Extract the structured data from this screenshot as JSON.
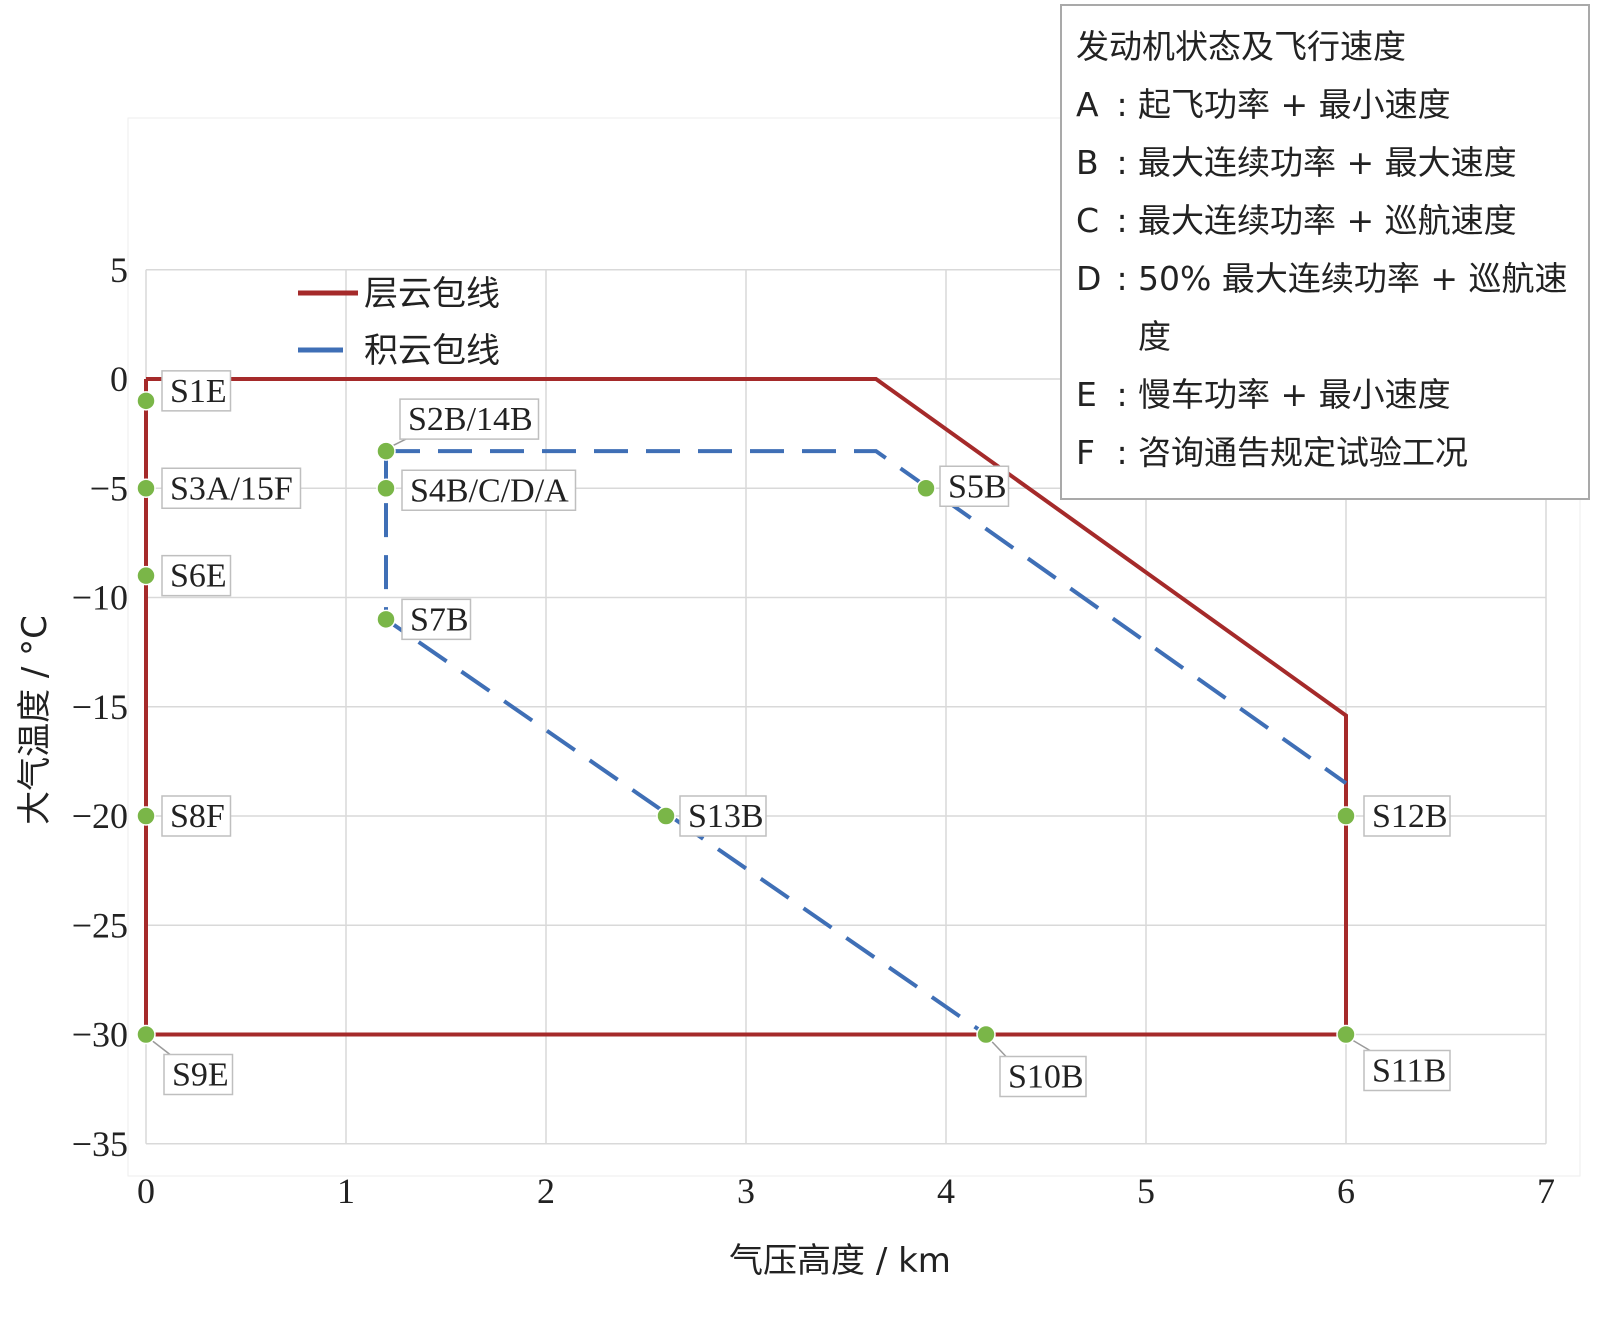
{
  "chart_data": {
    "type": "line",
    "xlabel": "气压高度 / km",
    "ylabel": "大气温度 / °C",
    "xlim": [
      0,
      7
    ],
    "ylim": [
      -35,
      5
    ],
    "xticks": [
      0,
      1,
      2,
      3,
      4,
      5,
      6,
      7
    ],
    "yticks": [
      5,
      0,
      -5,
      -10,
      -15,
      -20,
      -25,
      -30,
      -35
    ],
    "ytick_labels": [
      "5",
      "0",
      "−5",
      "−10",
      "−15",
      "−20",
      "−25",
      "−30",
      "−35"
    ],
    "grid": true,
    "legend_position": "top-left",
    "series": [
      {
        "name": "层云包线",
        "color": "#a52a2a",
        "style": "solid",
        "x": [
          0,
          3.65,
          6,
          6,
          0,
          0
        ],
        "y": [
          0,
          0,
          -15.4,
          -30,
          -30,
          0
        ]
      },
      {
        "name": "积云包线",
        "color": "#3f6fb6",
        "style": "dashed",
        "x": [
          1.2,
          3.65,
          6,
          null,
          1.2,
          1.2,
          4.2
        ],
        "y": [
          -3.3,
          -3.3,
          -18.5,
          null,
          -3.3,
          -11,
          -30
        ]
      }
    ],
    "points": [
      {
        "label": "S1E",
        "x": 0,
        "y": -1
      },
      {
        "label": "S3A/15F",
        "x": 0,
        "y": -5
      },
      {
        "label": "S6E",
        "x": 0,
        "y": -9
      },
      {
        "label": "S8F",
        "x": 0,
        "y": -20
      },
      {
        "label": "S9E",
        "x": 0,
        "y": -30
      },
      {
        "label": "S2B/14B",
        "x": 1.2,
        "y": -3.3
      },
      {
        "label": "S4B/C/D/A",
        "x": 1.2,
        "y": -5
      },
      {
        "label": "S7B",
        "x": 1.2,
        "y": -11
      },
      {
        "label": "S5B",
        "x": 3.9,
        "y": -5
      },
      {
        "label": "S13B",
        "x": 2.6,
        "y": -20
      },
      {
        "label": "S10B",
        "x": 4.2,
        "y": -30
      },
      {
        "label": "S12B",
        "x": 6,
        "y": -20
      },
      {
        "label": "S11B",
        "x": 6,
        "y": -30
      }
    ],
    "point_color": "#7ab648"
  },
  "info_box": {
    "title": "发动机状态及飞行速度",
    "items": [
      {
        "code": "A",
        "sep": ":",
        "text": "起飞功率 + 最小速度"
      },
      {
        "code": "B",
        "sep": ":",
        "text": "最大连续功率 + 最大速度"
      },
      {
        "code": "C",
        "sep": ":",
        "text": "最大连续功率 + 巡航速度"
      },
      {
        "code": "D",
        "sep": ":",
        "text": "50% 最大连续功率 + 巡航速度"
      },
      {
        "code": "E",
        "sep": ":",
        "text": "慢车功率 + 最小速度"
      },
      {
        "code": "F",
        "sep": ":",
        "text": "咨询通告规定试验工况"
      }
    ]
  }
}
